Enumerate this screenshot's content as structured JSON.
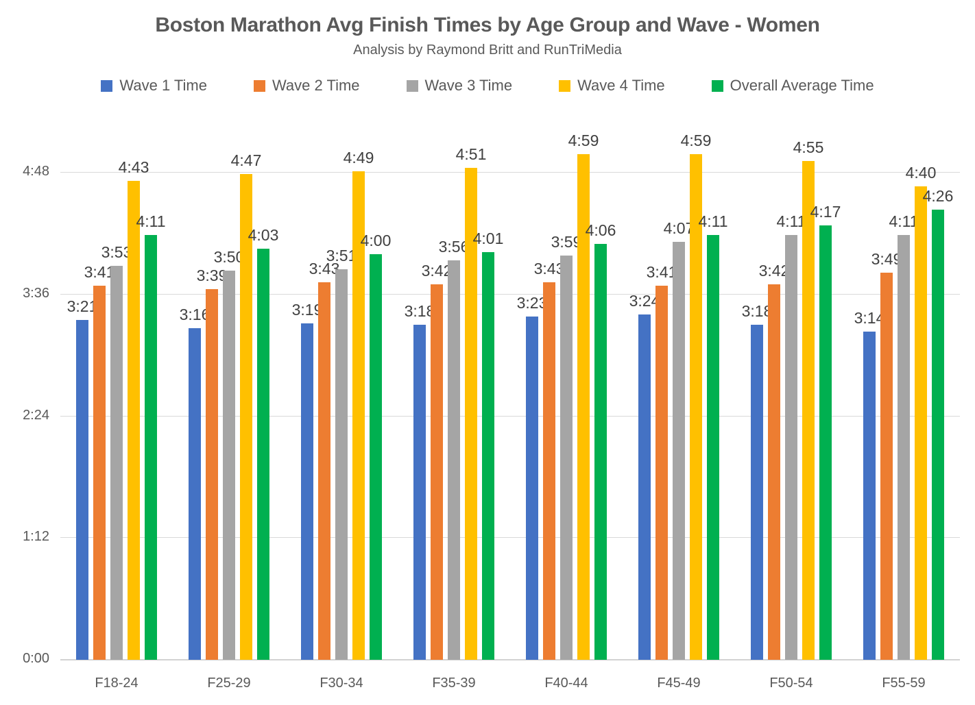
{
  "chart_data": {
    "type": "bar",
    "title": "Boston Marathon Avg Finish Times by Age Group and Wave - Women",
    "subtitle": "Analysis by Raymond Britt and RunTriMedia",
    "legend_position": "top",
    "gridlines": "horizontal",
    "categories": [
      "F18-24",
      "F25-29",
      "F30-34",
      "F35-39",
      "F40-44",
      "F45-49",
      "F50-54",
      "F55-59"
    ],
    "series": [
      {
        "name": "Wave 1 Time",
        "color": "#4472C4",
        "values": [
          "3:21",
          "3:16",
          "3:19",
          "3:18",
          "3:23",
          "3:24",
          "3:18",
          "3:14"
        ]
      },
      {
        "name": "Wave 2 Time",
        "color": "#ED7D31",
        "values": [
          "3:41",
          "3:39",
          "3:43",
          "3:42",
          "3:43",
          "3:41",
          "3:42",
          "3:49"
        ]
      },
      {
        "name": "Wave 3 Time",
        "color": "#A5A5A5",
        "values": [
          "3:53",
          "3:50",
          "3:51",
          "3:56",
          "3:59",
          "4:07",
          "4:11",
          "4:11"
        ]
      },
      {
        "name": "Wave 4 Time",
        "color": "#FFC000",
        "values": [
          "4:43",
          "4:47",
          "4:49",
          "4:51",
          "4:59",
          "4:59",
          "4:55",
          "4:40"
        ]
      },
      {
        "name": "Overall Average Time",
        "color": "#00B050",
        "values": [
          "4:11",
          "4:03",
          "4:00",
          "4:01",
          "4:06",
          "4:11",
          "4:17",
          "4:26"
        ]
      }
    ],
    "y_axis": {
      "unit": "h:mm",
      "ticks": [
        "0:00",
        "1:12",
        "2:24",
        "3:36",
        "4:48"
      ],
      "range_minutes": [
        0,
        288
      ]
    },
    "colors": {
      "title_text": "#595959",
      "axis_text": "#595959",
      "data_label_text": "#404040",
      "gridline": "#D9D9D9",
      "background": "#FFFFFF"
    }
  }
}
